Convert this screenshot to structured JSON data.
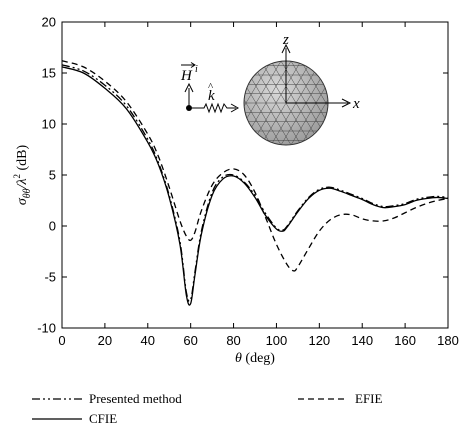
{
  "chart_data": {
    "type": "line",
    "title": "",
    "xlabel_symbol": "θ",
    "xlabel_unit": "(deg)",
    "ylabel_main": "σ",
    "ylabel_sub": "θθ",
    "ylabel_rest": "/λ",
    "ylabel_sup": "2",
    "ylabel_unit": "(dB)",
    "xlim": [
      0,
      180
    ],
    "ylim": [
      -10,
      20
    ],
    "xticks": [
      0,
      20,
      40,
      60,
      80,
      100,
      120,
      140,
      160,
      180
    ],
    "yticks": [
      -10,
      -5,
      0,
      5,
      10,
      15,
      20
    ],
    "grid": false,
    "legend_position": "bottom",
    "series": [
      {
        "name": "Presented method",
        "style": "dash-dot",
        "x": [
          0,
          10,
          20,
          30,
          40,
          45,
          50,
          55,
          58,
          60,
          62,
          65,
          70,
          75,
          80,
          85,
          90,
          95,
          100,
          103,
          105,
          110,
          115,
          120,
          125,
          130,
          135,
          140,
          145,
          150,
          155,
          160,
          165,
          170,
          175,
          180
        ],
        "y": [
          15.8,
          15.2,
          13.8,
          11.8,
          8.5,
          6.2,
          3.0,
          -1.5,
          -6.5,
          -7.2,
          -4.5,
          -0.5,
          3.3,
          4.8,
          5.0,
          4.3,
          3.0,
          1.2,
          -0.2,
          -0.4,
          0.0,
          1.5,
          2.8,
          3.6,
          3.8,
          3.5,
          3.1,
          2.7,
          2.2,
          1.9,
          2.0,
          2.2,
          2.6,
          2.8,
          2.9,
          2.8
        ]
      },
      {
        "name": "EFIE",
        "style": "dashed",
        "x": [
          0,
          10,
          20,
          30,
          40,
          45,
          50,
          55,
          58,
          60,
          62,
          65,
          70,
          75,
          80,
          85,
          90,
          95,
          100,
          105,
          108,
          110,
          115,
          120,
          125,
          130,
          135,
          140,
          145,
          150,
          155,
          160,
          165,
          170,
          175,
          180
        ],
        "y": [
          16.2,
          15.6,
          14.2,
          12.2,
          9.0,
          6.8,
          3.8,
          0.5,
          -1.0,
          -1.4,
          -0.6,
          1.5,
          4.0,
          5.2,
          5.6,
          5.0,
          3.3,
          0.8,
          -1.8,
          -3.8,
          -4.4,
          -4.0,
          -2.2,
          -0.5,
          0.6,
          1.1,
          1.1,
          0.7,
          0.5,
          0.5,
          0.8,
          1.3,
          1.8,
          2.2,
          2.5,
          2.7
        ]
      },
      {
        "name": "CFIE",
        "style": "solid",
        "x": [
          0,
          10,
          20,
          30,
          40,
          45,
          50,
          55,
          58,
          60,
          62,
          65,
          70,
          75,
          80,
          85,
          90,
          95,
          100,
          103,
          105,
          110,
          115,
          120,
          125,
          130,
          135,
          140,
          145,
          150,
          155,
          160,
          165,
          170,
          175,
          180
        ],
        "y": [
          15.6,
          15.0,
          13.5,
          11.5,
          8.2,
          6.0,
          2.8,
          -1.8,
          -6.8,
          -7.6,
          -4.8,
          -0.8,
          3.0,
          4.6,
          4.9,
          4.2,
          2.8,
          1.0,
          -0.3,
          -0.5,
          -0.1,
          1.4,
          2.7,
          3.5,
          3.7,
          3.4,
          3.0,
          2.6,
          2.1,
          1.8,
          1.9,
          2.1,
          2.5,
          2.7,
          2.8,
          2.7
        ]
      }
    ]
  },
  "inset": {
    "h_label": "H",
    "h_sup": "i",
    "k_label": "k",
    "k_hat": "^",
    "z_label": "z",
    "x_label": "x"
  }
}
